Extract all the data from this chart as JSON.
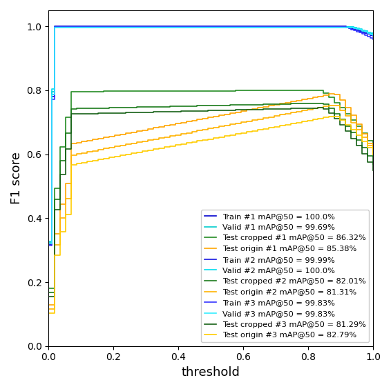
{
  "xlabel": "threshold",
  "ylabel": "F1 score",
  "xlim": [
    0.0,
    1.0
  ],
  "ylim": [
    0.0,
    1.05
  ],
  "legend_entries": [
    "Train #1 mAP@50 = 100.0%",
    "Valid #1 mAP@50 = 99.69%",
    "Test cropped #1 mAP@50 = 86.32%",
    "Test origin #1 mAP@50 = 85.38%",
    "Train #2 mAP@50 = 99.99%",
    "Valid #2 mAP@50 = 100.0%",
    "Test cropped #2 mAP@50 = 82.01%",
    "Test origin #2 mAP@50 = 81.31%",
    "Train #3 mAP@50 = 99.83%",
    "Valid #3 mAP@50 = 99.83%",
    "Test cropped #3 mAP@50 = 81.29%",
    "Test origin #3 mAP@50 = 82.79%"
  ],
  "colors": [
    "#0000cd",
    "#00cccc",
    "#228B22",
    "#FFA500",
    "#1515e0",
    "#00ddee",
    "#1a7a1a",
    "#FFB300",
    "#3333ff",
    "#33eeff",
    "#156015",
    "#ffcc00"
  ]
}
